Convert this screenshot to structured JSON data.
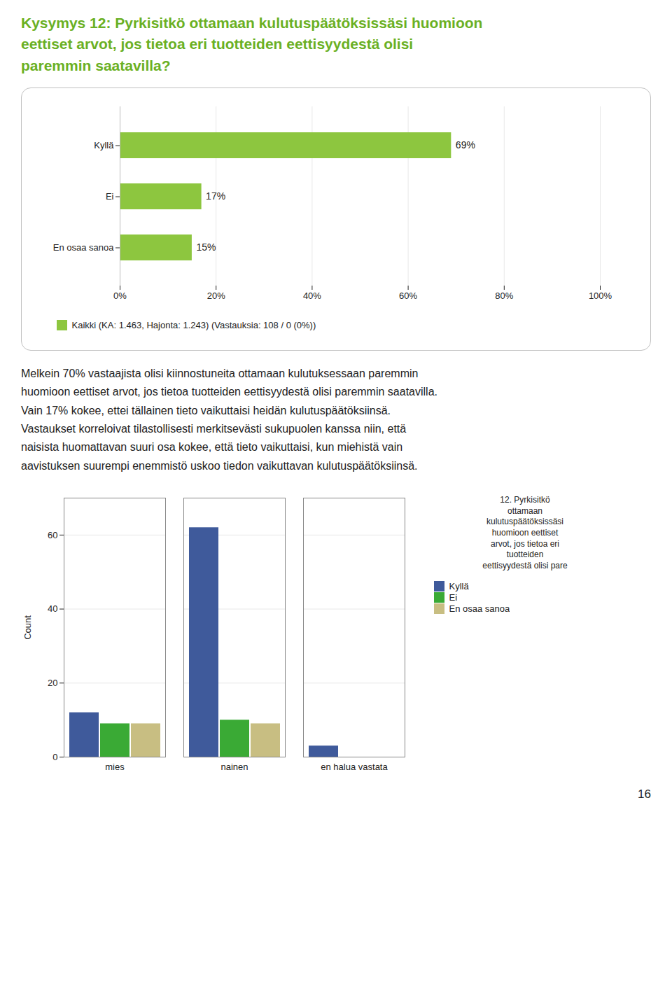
{
  "chart_data": [
    {
      "type": "bar",
      "orientation": "horizontal",
      "title": "Kysymys 12: Pyrkisitkö ottamaan kulutuspäätöksissäsi huomioon\neettiset arvot, jos tietoa eri tuotteiden eettisyydestä olisi\nparemmin saatavilla?",
      "color": "#6ab023",
      "categories": [
        "Kyllä",
        "Ei",
        "En osaa sanoa"
      ],
      "series": [
        {
          "name": "Kaikki (KA: 1.463, Hajonta: 1.243) (Vastauksia: 108 / 0 (0%))",
          "color": "#8dc63f",
          "values": [
            69,
            17,
            15
          ],
          "value_labels": [
            "69%",
            "17%",
            "15%"
          ]
        }
      ],
      "xlim": [
        0,
        100
      ],
      "xticks": [
        {
          "value": 0,
          "label": "0%"
        },
        {
          "value": 20,
          "label": "20%"
        },
        {
          "value": 40,
          "label": "40%"
        },
        {
          "value": 60,
          "label": "60%"
        },
        {
          "value": 80,
          "label": "80%"
        },
        {
          "value": 100,
          "label": "100%"
        }
      ],
      "grid": true,
      "legend": "bottom",
      "data_labels": true,
      "annotations": [
        "Melkein 70% vastaajista olisi kiinnostuneita ottamaan kulutuksessaan paremmin",
        "huomioon eettiset arvot, jos tietoa tuotteiden eettisyydestä olisi paremmin saatavilla.",
        "Vain 17% kokee, ettei tällainen tieto vaikuttaisi heidän kulutuspäätöksiinsä.",
        "Vastaukset korreloivat tilastollisesti merkitsevästi sukupuolen kanssa niin, että",
        "naisista huomattavan suuri osa kokee, että tieto vaikuttaisi, kun miehistä vain",
        "aavistuksen suurempi enemmistö uskoo tiedon vaikuttavan kulutuspäätöksiinsä."
      ]
    },
    {
      "type": "bar",
      "categories": [
        "mies",
        "nainen",
        "en halua vastata"
      ],
      "series": [
        {
          "name": "Kyllä",
          "color": "#3f5a9b",
          "values": [
            12,
            62,
            3
          ]
        },
        {
          "name": "Ei",
          "color": "#3aaa35",
          "values": [
            9,
            10,
            0
          ]
        },
        {
          "name": "En osaa sanoa",
          "color": "#c8be82",
          "values": [
            9,
            9,
            0
          ]
        }
      ],
      "ylabel": "Count",
      "ylim": [
        0,
        70
      ],
      "yticks": [
        0,
        20,
        40,
        60
      ],
      "grid": true,
      "legend": "right",
      "legend_title": "12. Pyrkisitkö\nottamaan\nkulutuspäätöksissäsi\nhuomioon eettiset\narvot, jos tietoa eri\ntuotteiden\neettisyydestä olisi pare",
      "annotations": [
        "16"
      ]
    }
  ]
}
